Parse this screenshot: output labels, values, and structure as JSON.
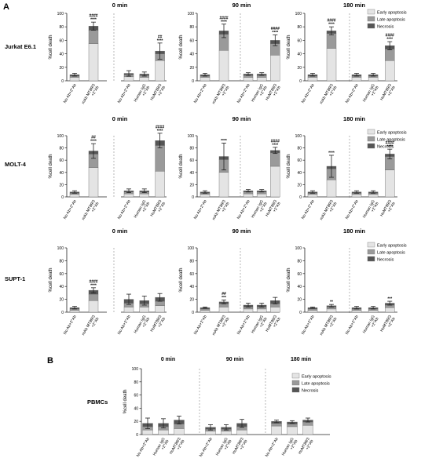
{
  "figure": {
    "panels": [
      {
        "letter": "A"
      },
      {
        "letter": "B"
      }
    ]
  },
  "legend_labels": [
    "Early apoptosis",
    "Late apoptosis",
    "Necrosis"
  ],
  "colors": {
    "early": "#e4e4e4",
    "late": "#9a9a9a",
    "necrosis": "#555555",
    "error": "#222222",
    "divider": "#999999"
  },
  "chart_data": [
    {
      "type": "bar",
      "stacked": true,
      "row_label": "Jurkat E6.1",
      "timepoints": [
        "0 min",
        "90 min",
        "180 min"
      ],
      "categories": [
        "No Ab+2°Ab",
        "mAb MT89/3 +2°Ab",
        "No Ab+2°Ab",
        "Human IgG +2°Ab",
        "HuMT89/3 +2°Ab"
      ],
      "ylabel": "%cell death",
      "ylim": [
        0,
        100
      ],
      "yticks": [
        0,
        20,
        40,
        60,
        80,
        100
      ],
      "legend": [
        "Early apoptosis",
        "Late apoptosis",
        "Necrosis"
      ],
      "groups": [
        {
          "title": "0 min",
          "early": [
            5,
            55,
            6,
            5,
            30
          ],
          "late": [
            2,
            20,
            3,
            3,
            10
          ],
          "necrosis": [
            2,
            6,
            2,
            2,
            4
          ],
          "err": [
            2,
            6,
            4,
            3,
            12
          ],
          "annot": [
            "",
            "####\n****",
            "",
            "",
            "##\n****"
          ]
        },
        {
          "title": "90 min",
          "early": [
            5,
            45,
            5,
            5,
            38
          ],
          "late": [
            2,
            24,
            3,
            3,
            17
          ],
          "necrosis": [
            2,
            5,
            2,
            2,
            5
          ],
          "err": [
            2,
            10,
            2,
            2,
            8
          ],
          "annot": [
            "",
            "####\n****",
            "",
            "",
            "####\n****"
          ]
        },
        {
          "title": "180 min",
          "early": [
            5,
            48,
            5,
            5,
            30
          ],
          "late": [
            2,
            22,
            2,
            2,
            17
          ],
          "necrosis": [
            2,
            4,
            2,
            2,
            5
          ],
          "err": [
            2,
            6,
            2,
            2,
            6
          ],
          "annot": [
            "",
            "####\n****",
            "",
            "",
            "####\n****"
          ]
        }
      ]
    },
    {
      "type": "bar",
      "stacked": true,
      "row_label": "MOLT-4",
      "timepoints": [
        "0 min",
        "90 min",
        "180 min"
      ],
      "categories": [
        "No Ab+2°Ab",
        "mAb MT89/3 +2°Ab",
        "No Ab+2°Ab",
        "Human IgG +2°Ab",
        "HuMT89/3 +2°Ab"
      ],
      "ylabel": "%cell death",
      "ylim": [
        0,
        100
      ],
      "yticks": [
        0,
        20,
        40,
        60,
        80,
        100
      ],
      "legend": [
        "Early apoptosis",
        "Late apoptosis",
        "Necrosis"
      ],
      "groups": [
        {
          "title": "0 min",
          "early": [
            4,
            48,
            5,
            5,
            42
          ],
          "late": [
            2,
            22,
            3,
            3,
            42
          ],
          "necrosis": [
            2,
            5,
            2,
            2,
            8
          ],
          "err": [
            2,
            12,
            3,
            3,
            12
          ],
          "annot": [
            "",
            "##\n****",
            "",
            "",
            "####\n****"
          ]
        },
        {
          "title": "90 min",
          "early": [
            4,
            40,
            5,
            5,
            50
          ],
          "late": [
            2,
            21,
            3,
            3,
            22
          ],
          "necrosis": [
            2,
            5,
            2,
            2,
            4
          ],
          "err": [
            2,
            22,
            2,
            2,
            5
          ],
          "annot": [
            "",
            "****",
            "",
            "",
            "####\n****"
          ]
        },
        {
          "title": "180 min",
          "early": [
            4,
            28,
            4,
            4,
            44
          ],
          "late": [
            2,
            18,
            2,
            2,
            22
          ],
          "necrosis": [
            2,
            4,
            2,
            2,
            4
          ],
          "err": [
            2,
            18,
            2,
            2,
            8
          ],
          "annot": [
            "",
            "****",
            "",
            "",
            "####\n****"
          ]
        }
      ]
    },
    {
      "type": "bar",
      "stacked": true,
      "row_label": "SUPT-1",
      "timepoints": [
        "0 min",
        "90 min",
        "180 min"
      ],
      "categories": [
        "No Ab+2°Ab",
        "mAb MT89/3 +2°Ab",
        "No Ab+2°Ab",
        "Human IgG +2°Ab",
        "HuMT89/3 +2°Ab"
      ],
      "ylabel": "%cell death",
      "ylim": [
        0,
        100
      ],
      "yticks": [
        0,
        20,
        40,
        60,
        80,
        100
      ],
      "legend": [
        "Early apoptosis",
        "Late apoptosis",
        "Necrosis"
      ],
      "groups": [
        {
          "title": "0 min",
          "early": [
            3,
            18,
            8,
            8,
            10
          ],
          "late": [
            2,
            10,
            6,
            5,
            7
          ],
          "necrosis": [
            2,
            6,
            6,
            5,
            6
          ],
          "err": [
            2,
            4,
            8,
            7,
            6
          ],
          "annot": [
            "",
            "####\n****",
            "",
            "",
            ""
          ]
        },
        {
          "title": "90 min",
          "early": [
            3,
            8,
            5,
            5,
            8
          ],
          "late": [
            2,
            5,
            3,
            3,
            5
          ],
          "necrosis": [
            2,
            3,
            3,
            3,
            5
          ],
          "err": [
            1,
            3,
            3,
            3,
            5
          ],
          "annot": [
            "",
            "##\n***",
            "",
            "",
            ""
          ]
        },
        {
          "title": "180 min",
          "early": [
            3,
            5,
            3,
            3,
            7
          ],
          "late": [
            2,
            3,
            2,
            2,
            4
          ],
          "necrosis": [
            2,
            2,
            2,
            2,
            3
          ],
          "err": [
            1,
            2,
            2,
            2,
            3
          ],
          "annot": [
            "",
            "**",
            "",
            "",
            "***"
          ]
        }
      ]
    },
    {
      "type": "bar",
      "stacked": true,
      "row_label": "PBMCs",
      "timepoints": [
        "0 min",
        "90 min",
        "180 min"
      ],
      "categories": [
        "No Ab+2°Ab",
        "Human IgG +2°Ab",
        "HuMT89/3 +2°Ab"
      ],
      "ylabel": "%cell death",
      "ylim": [
        0,
        100
      ],
      "yticks": [
        0,
        20,
        40,
        60,
        80,
        100
      ],
      "legend": [
        "Early apoptosis",
        "Late apoptosis",
        "Necrosis"
      ],
      "groups": [
        {
          "title": "0 min",
          "early": [
            7,
            7,
            9
          ],
          "late": [
            5,
            5,
            7
          ],
          "necrosis": [
            5,
            5,
            6
          ],
          "err": [
            8,
            7,
            6
          ]
        },
        {
          "title": "90 min",
          "early": [
            5,
            5,
            7
          ],
          "late": [
            3,
            3,
            5
          ],
          "necrosis": [
            3,
            3,
            5
          ],
          "err": [
            4,
            4,
            6
          ]
        },
        {
          "title": "180 min",
          "early": [
            13,
            12,
            14
          ],
          "late": [
            4,
            4,
            5
          ],
          "necrosis": [
            3,
            3,
            3
          ],
          "err": [
            2,
            2,
            3
          ]
        }
      ]
    }
  ]
}
